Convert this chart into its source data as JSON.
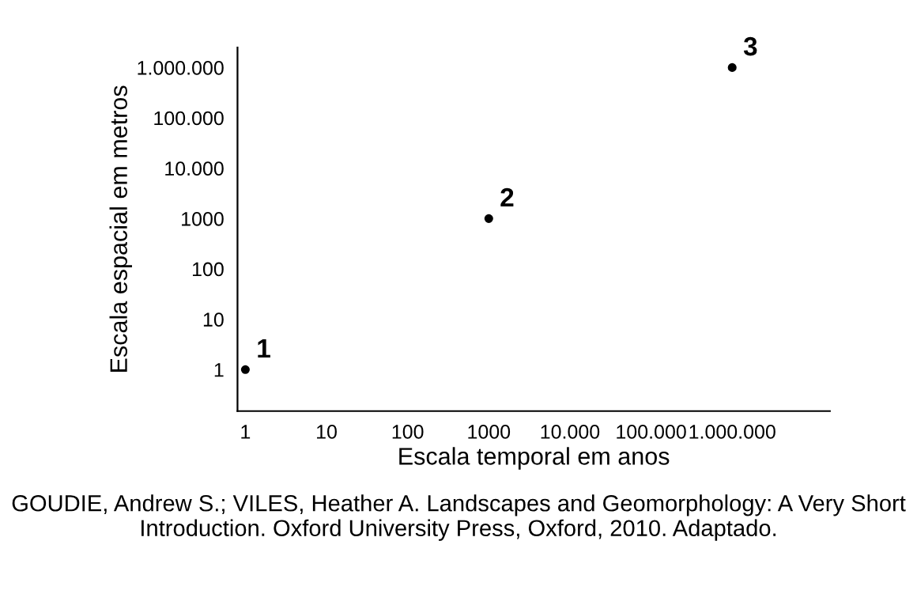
{
  "chart_data": {
    "type": "scatter",
    "log": "xy",
    "marker": "circle",
    "legend": false,
    "xlabel": "Escala temporal em anos",
    "ylabel": "Escala espacial em metros",
    "x": [
      1,
      1000,
      1000000
    ],
    "values": [
      1,
      1000,
      1000000
    ],
    "xlim": [
      0.8,
      16000000
    ],
    "ylim": [
      0.15,
      2500000
    ],
    "xticks": [
      1,
      10,
      100,
      1000,
      {
        "value": 10000,
        "label": "10.000"
      },
      {
        "value": 100000,
        "label": "100.000"
      },
      {
        "value": 1000000,
        "label": "1.000.000"
      }
    ],
    "yticks": [
      1,
      10,
      100,
      1000,
      {
        "value": 10000,
        "label": "10.000"
      },
      {
        "value": 100000,
        "label": "100.000"
      },
      {
        "value": 1000000,
        "label": "1.000.000"
      }
    ],
    "grid": false,
    "annotations": [
      {
        "text": "1",
        "x": 1,
        "y": 1
      },
      {
        "text": "2",
        "x": 1000,
        "y": 1000
      },
      {
        "text": "3",
        "x": 1000000,
        "y": 1000000
      },
      "GOUDIE, Andrew S.; VILES, Heather A. Landscapes and Geomorphology: A Very Short Introduction. Oxford University Press, Oxford, 2010. Adaptado."
    ]
  }
}
